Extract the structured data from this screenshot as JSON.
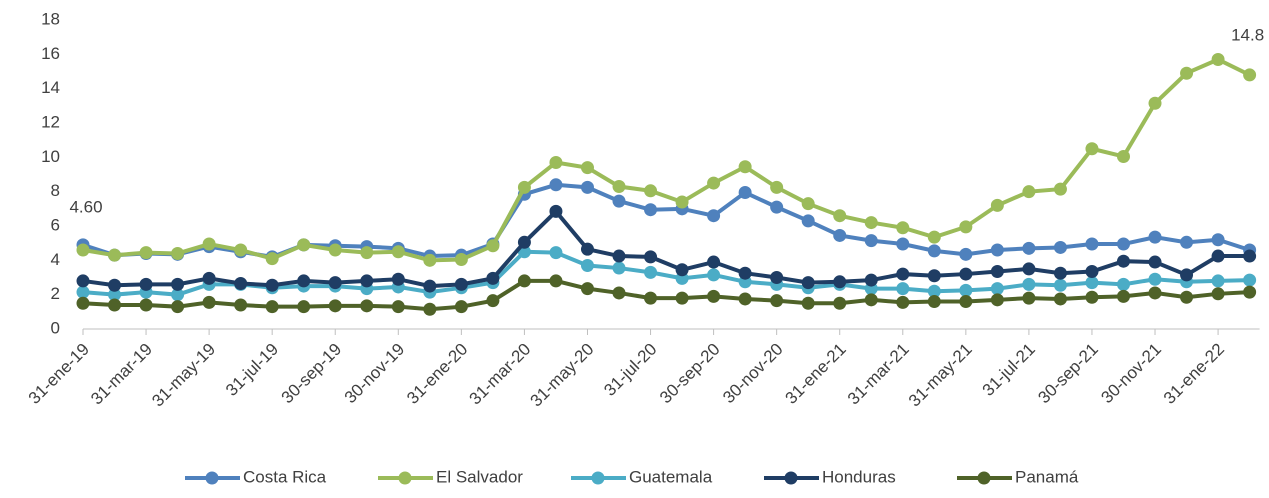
{
  "chart_data": {
    "type": "line",
    "categories": [
      "31-ene-19",
      null,
      "31-mar-19",
      null,
      "31-may-19",
      null,
      "31-jul-19",
      null,
      "30-sep-19",
      null,
      "30-nov-19",
      null,
      "31-ene-20",
      null,
      "31-mar-20",
      null,
      "31-may-20",
      null,
      "31-jul-20",
      null,
      "30-sep-20",
      null,
      "30-nov-20",
      null,
      "31-ene-21",
      null,
      "31-mar-21",
      null,
      "31-may-21",
      null,
      "31-jul-21",
      null,
      "30-sep-21",
      null,
      "30-nov-21",
      null,
      "31-ene-22",
      null
    ],
    "series": [
      {
        "name": "Costa Rica",
        "color": "#4f81bd",
        "values": [
          4.9,
          4.3,
          4.4,
          4.35,
          4.8,
          4.5,
          4.2,
          4.9,
          4.85,
          4.8,
          4.7,
          4.25,
          4.3,
          4.95,
          7.85,
          8.4,
          8.25,
          7.45,
          6.95,
          7.0,
          6.6,
          7.95,
          7.1,
          6.3,
          5.45,
          5.15,
          4.95,
          4.55,
          4.35,
          4.6,
          4.7,
          4.75,
          4.95,
          4.95,
          5.35,
          5.05,
          5.2,
          4.6
        ]
      },
      {
        "name": "El Salvador",
        "color": "#9bbb59",
        "values": [
          4.6,
          4.3,
          4.45,
          4.4,
          4.95,
          4.6,
          4.1,
          4.9,
          4.6,
          4.45,
          4.5,
          4.0,
          4.05,
          4.85,
          8.25,
          9.7,
          9.4,
          8.3,
          8.05,
          7.4,
          8.5,
          9.45,
          8.25,
          7.3,
          6.6,
          6.2,
          5.9,
          5.35,
          5.95,
          7.2,
          8.0,
          8.15,
          10.5,
          10.05,
          13.15,
          14.9,
          15.7,
          14.8
        ],
        "value_labels": [
          "4.60",
          null,
          null,
          null,
          null,
          null,
          null,
          null,
          null,
          null,
          null,
          null,
          null,
          null,
          null,
          null,
          null,
          null,
          null,
          null,
          null,
          null,
          null,
          null,
          null,
          null,
          null,
          null,
          null,
          null,
          null,
          null,
          null,
          null,
          null,
          null,
          null,
          "14.8"
        ]
      },
      {
        "name": "Guatemala",
        "color": "#4bacc6",
        "values": [
          2.15,
          2.0,
          2.15,
          2.0,
          2.6,
          2.6,
          2.4,
          2.5,
          2.5,
          2.35,
          2.45,
          2.15,
          2.4,
          2.7,
          4.5,
          4.45,
          3.7,
          3.55,
          3.3,
          2.95,
          3.15,
          2.75,
          2.6,
          2.4,
          2.6,
          2.35,
          2.35,
          2.2,
          2.25,
          2.35,
          2.6,
          2.55,
          2.7,
          2.6,
          2.9,
          2.75,
          2.8,
          2.85
        ]
      },
      {
        "name": "Honduras",
        "color": "#1f3d64",
        "values": [
          2.8,
          2.55,
          2.6,
          2.6,
          2.95,
          2.65,
          2.55,
          2.8,
          2.7,
          2.8,
          2.9,
          2.5,
          2.6,
          2.95,
          5.05,
          6.85,
          4.65,
          4.25,
          4.2,
          3.45,
          3.9,
          3.25,
          3.0,
          2.7,
          2.75,
          2.85,
          3.2,
          3.1,
          3.2,
          3.35,
          3.5,
          3.25,
          3.35,
          3.95,
          3.9,
          3.15,
          4.25,
          4.25
        ]
      },
      {
        "name": "Panamá",
        "color": "#4f6228",
        "values": [
          1.5,
          1.4,
          1.4,
          1.3,
          1.55,
          1.4,
          1.3,
          1.3,
          1.35,
          1.35,
          1.3,
          1.15,
          1.3,
          1.65,
          2.8,
          2.8,
          2.35,
          2.1,
          1.8,
          1.8,
          1.9,
          1.75,
          1.65,
          1.5,
          1.5,
          1.7,
          1.55,
          1.6,
          1.6,
          1.7,
          1.8,
          1.75,
          1.85,
          1.9,
          2.1,
          1.85,
          2.05,
          2.15
        ]
      }
    ],
    "ylim": [
      0,
      18
    ],
    "yticks": [
      0,
      2,
      4,
      6,
      8,
      10,
      12,
      14,
      16,
      18
    ],
    "grid": false,
    "legend": "bottom"
  }
}
